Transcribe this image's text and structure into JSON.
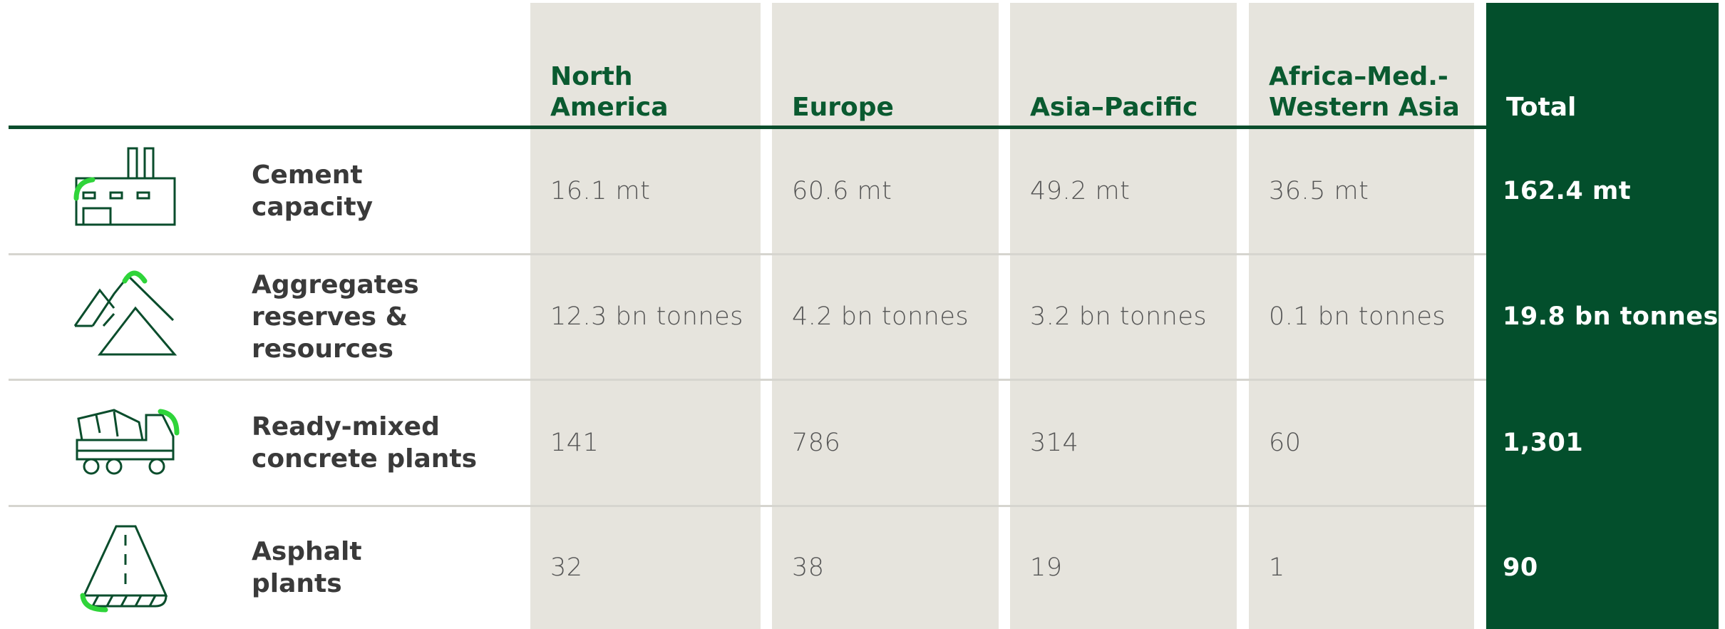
{
  "table": {
    "headers": [
      [
        "North",
        "America"
      ],
      [
        "Europe"
      ],
      [
        "Asia–Pacific"
      ],
      [
        "Africa–Med.-",
        "Western Asia"
      ],
      [
        "Total"
      ]
    ],
    "rows": [
      {
        "label": [
          "Cement",
          "capacity"
        ],
        "values": [
          "16.1 mt",
          "60.6 mt",
          "49.2 mt",
          "36.5 mt"
        ],
        "total": "162.4 mt"
      },
      {
        "label": [
          "Aggregates",
          "reserves &",
          "resources"
        ],
        "values": [
          "12.3 bn tonnes",
          "4.2 bn tonnes",
          "3.2 bn tonnes",
          "0.1 bn tonnes"
        ],
        "total": "19.8 bn tonnes"
      },
      {
        "label": [
          "Ready-mixed",
          "concrete plants"
        ],
        "values": [
          "141",
          "786",
          "314",
          "60"
        ],
        "total": "1,301"
      },
      {
        "label": [
          "Asphalt",
          "plants"
        ],
        "values": [
          "32",
          "38",
          "19",
          "1"
        ],
        "total": "90"
      }
    ]
  }
}
